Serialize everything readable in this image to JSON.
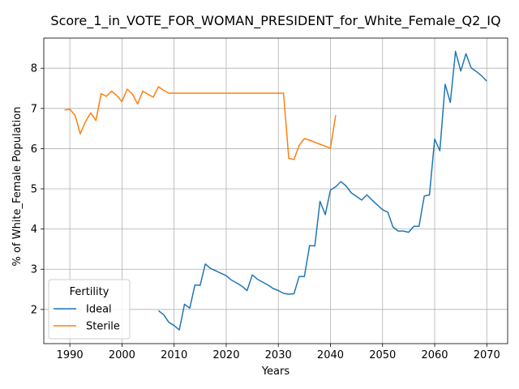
{
  "chart_data": {
    "type": "line",
    "title": "Score_1_in_VOTE_FOR_WOMAN_PRESIDENT_for_White_Female_Q2_IQ",
    "xlabel": "Years",
    "ylabel": "% of White_Female Population",
    "xlim": [
      1985,
      2074
    ],
    "ylim": [
      1.15,
      8.75
    ],
    "xticks": [
      1990,
      2000,
      2010,
      2020,
      2030,
      2040,
      2050,
      2060,
      2070
    ],
    "yticks": [
      2,
      3,
      4,
      5,
      6,
      7,
      8
    ],
    "grid": true,
    "legend": {
      "title": "Fertility",
      "placement": "lower-left"
    },
    "series": [
      {
        "name": "Ideal",
        "color": "#1f77b4",
        "x": [
          2007,
          2008,
          2009,
          2010,
          2011,
          2012,
          2013,
          2014,
          2015,
          2016,
          2017,
          2018,
          2019,
          2020,
          2021,
          2022,
          2023,
          2024,
          2025,
          2026,
          2027,
          2028,
          2029,
          2030,
          2031,
          2032,
          2033,
          2034,
          2035,
          2036,
          2037,
          2038,
          2039,
          2040,
          2041,
          2042,
          2043,
          2044,
          2045,
          2046,
          2047,
          2048,
          2049,
          2050,
          2051,
          2052,
          2053,
          2054,
          2055,
          2056,
          2057,
          2058,
          2059,
          2060,
          2061,
          2062,
          2063,
          2064,
          2065,
          2066,
          2067,
          2068,
          2069,
          2070
        ],
        "y": [
          1.97,
          1.87,
          1.68,
          1.6,
          1.49,
          2.13,
          2.03,
          2.61,
          2.6,
          3.13,
          3.02,
          2.96,
          2.9,
          2.84,
          2.73,
          2.66,
          2.58,
          2.47,
          2.86,
          2.75,
          2.68,
          2.61,
          2.52,
          2.47,
          2.4,
          2.38,
          2.39,
          2.82,
          2.82,
          3.59,
          3.58,
          4.69,
          4.36,
          4.97,
          5.05,
          5.18,
          5.07,
          4.9,
          4.81,
          4.72,
          4.85,
          4.72,
          4.6,
          4.48,
          4.42,
          4.05,
          3.95,
          3.95,
          3.92,
          4.07,
          4.07,
          4.82,
          4.85,
          6.24,
          5.95,
          7.6,
          7.15,
          8.42,
          7.93,
          8.36,
          8.01,
          7.92,
          7.81,
          7.68
        ]
      },
      {
        "name": "Sterile",
        "color": "#ff7f0e",
        "x": [
          1989,
          1990,
          1991,
          1992,
          1993,
          1994,
          1995,
          1996,
          1997,
          1998,
          1999,
          2000,
          2001,
          2002,
          2003,
          2004,
          2005,
          2006,
          2007,
          2008,
          2009,
          2010,
          2015,
          2020,
          2025,
          2030,
          2031,
          2032,
          2033,
          2034,
          2035,
          2036,
          2037,
          2038,
          2039,
          2040,
          2041
        ],
        "y": [
          6.96,
          6.98,
          6.83,
          6.37,
          6.67,
          6.89,
          6.7,
          7.37,
          7.3,
          7.43,
          7.32,
          7.17,
          7.48,
          7.36,
          7.11,
          7.43,
          7.35,
          7.28,
          7.54,
          7.45,
          7.38,
          7.38,
          7.38,
          7.38,
          7.38,
          7.38,
          7.38,
          5.76,
          5.73,
          6.08,
          6.25,
          6.21,
          6.16,
          6.11,
          6.06,
          6.01,
          6.83
        ]
      }
    ]
  }
}
